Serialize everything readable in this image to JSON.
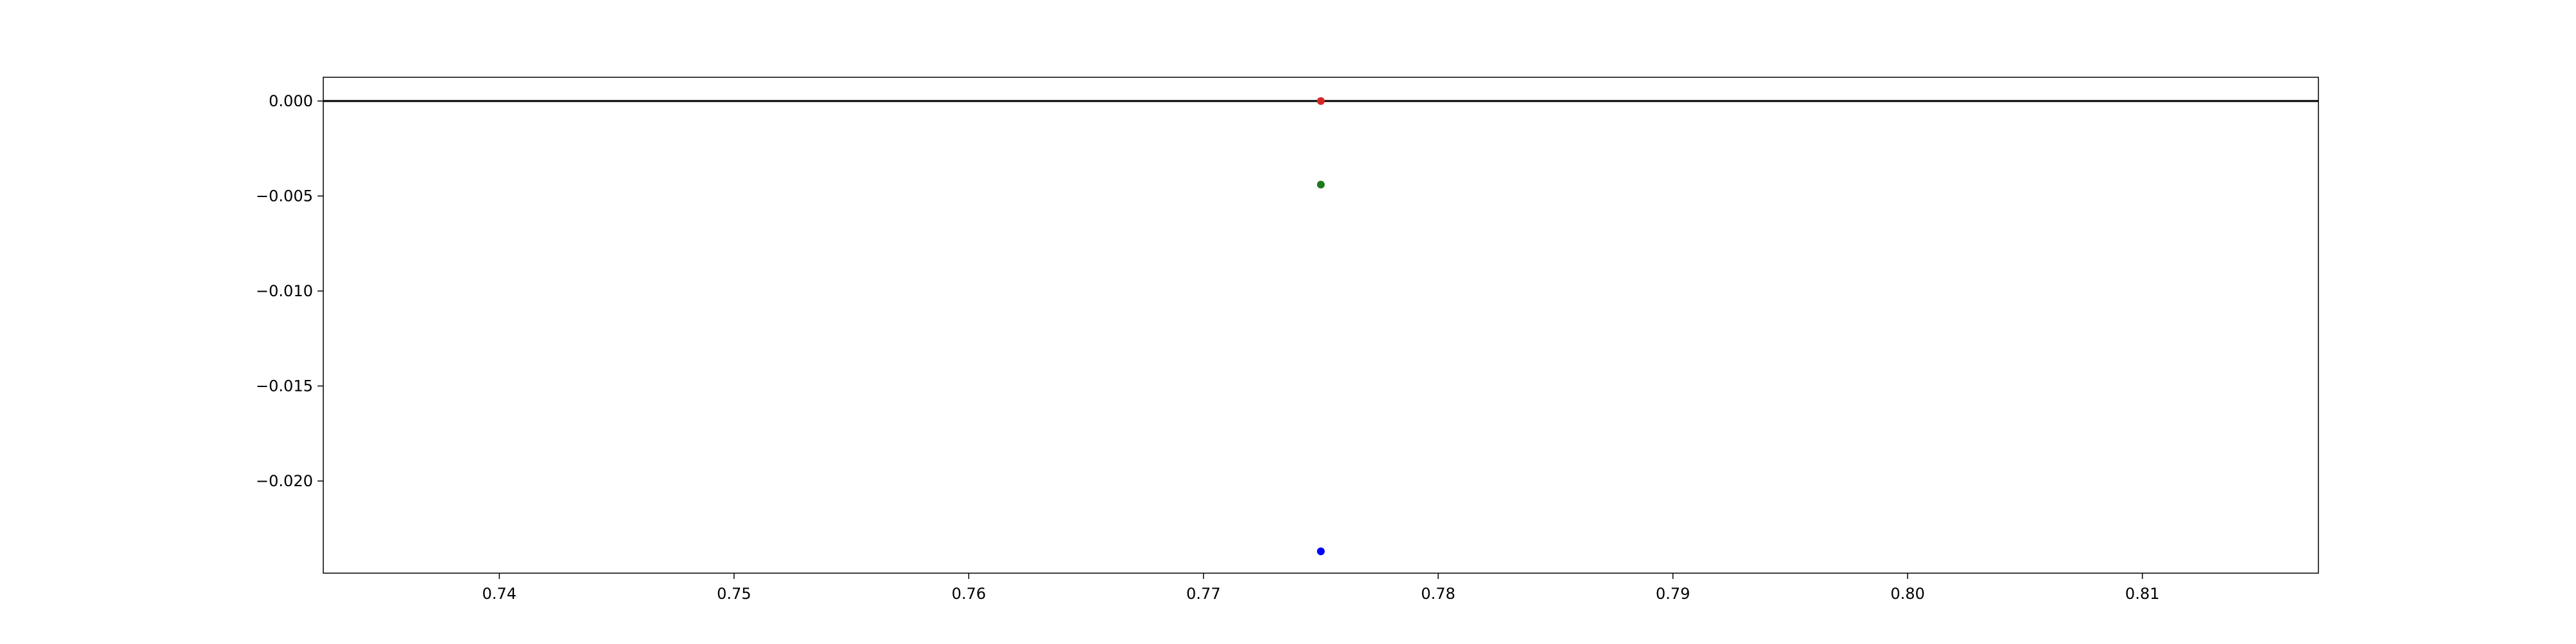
{
  "chart_data": {
    "type": "scatter",
    "title": "",
    "xlabel": "",
    "ylabel": "",
    "xlim": [
      0.7325,
      0.8175
    ],
    "ylim": [
      -0.02485,
      0.00125
    ],
    "x_ticks": [
      0.74,
      0.75,
      0.76,
      0.77,
      0.78,
      0.79,
      0.8,
      0.81
    ],
    "x_tick_labels": [
      "0.74",
      "0.75",
      "0.76",
      "0.77",
      "0.78",
      "0.79",
      "0.80",
      "0.81"
    ],
    "y_ticks": [
      0.0,
      -0.005,
      -0.01,
      -0.015,
      -0.02
    ],
    "y_tick_labels": [
      "0.000",
      "−0.005",
      "−0.010",
      "−0.015",
      "−0.020"
    ],
    "grid": false,
    "legend": "none",
    "reference_lines": [
      {
        "orientation": "horizontal",
        "y": 0.0,
        "color": "#000000"
      }
    ],
    "points": [
      {
        "x": 0.775,
        "y": 0.0,
        "color": "#d62728"
      },
      {
        "x": 0.775,
        "y": -0.0044,
        "color": "#1f7a1f"
      },
      {
        "x": 0.775,
        "y": -0.0237,
        "color": "#0000ff"
      }
    ]
  }
}
